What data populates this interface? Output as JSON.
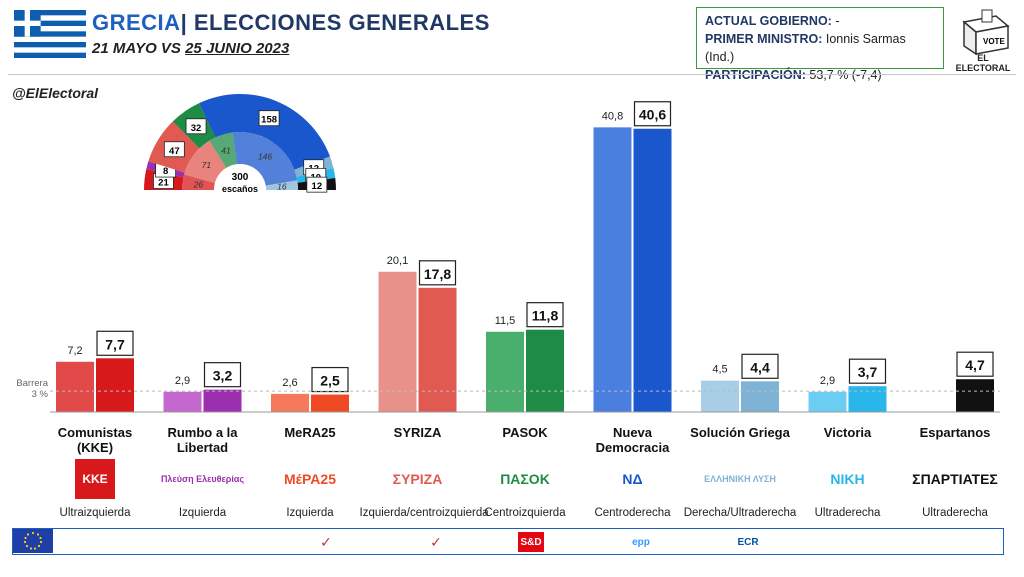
{
  "header": {
    "country": "GRECIA",
    "separator": "|",
    "election": "ELECCIONES GENERALES",
    "date_prefix": "21 MAYO VS",
    "date_main": "25 JUNIO 2023"
  },
  "infobox": {
    "gov_label": "ACTUAL GOBIERNO:",
    "gov_value": "-",
    "pm_label": "PRIMER MINISTRO:",
    "pm_value": "Ionnis Sarmas (Ind.)",
    "part_label": "PARTICIPACIÓN:",
    "part_value": "53,7 % (-7,4)"
  },
  "logo": {
    "vote": "VOTE",
    "brand": "EL ELECTORAL"
  },
  "handle": "@ElElectoral",
  "barrier": {
    "line1": "Barrera",
    "line2": "3 %"
  },
  "colors": {
    "brand_blue": "#1f5fbf",
    "kke": "#d7191c",
    "plefsi": "#9b2fae",
    "mera25": "#f04a24",
    "syriza": "#e05a52",
    "pasok": "#1e8c45",
    "nd": "#1a56cc",
    "elliniki": "#7fb3d5",
    "niki": "#29b6ea",
    "spartiates": "#111111"
  },
  "hemicycle": {
    "total_label": "300",
    "total_sub": "escaños",
    "seats_june": [
      {
        "party": "KKE",
        "seats": "21"
      },
      {
        "party": "Plefsi",
        "seats": "8"
      },
      {
        "party": "SYRIZA",
        "seats": "47"
      },
      {
        "party": "PASOK",
        "seats": "32"
      },
      {
        "party": "ND",
        "seats": "158"
      },
      {
        "party": "Elliniki",
        "seats": "12"
      },
      {
        "party": "Niki",
        "seats": "10"
      },
      {
        "party": "Spartiates",
        "seats": "12"
      }
    ],
    "seats_may": [
      {
        "party": "KKE",
        "seats": "26"
      },
      {
        "party": "SYRIZA",
        "seats": "71"
      },
      {
        "party": "PASOK",
        "seats": "41"
      },
      {
        "party": "ND",
        "seats": "146"
      },
      {
        "party": "Elliniki",
        "seats": "16"
      }
    ]
  },
  "chart_data": {
    "type": "bar",
    "categories": [
      "Comunistas (KKE)",
      "Rumbo a la Libertad",
      "MeRA25",
      "SYRIZA",
      "PASOK",
      "Nueva Democracia",
      "Solución Griega",
      "Victoria",
      "Espartanos"
    ],
    "series": [
      {
        "name": "21 MAYO",
        "values": [
          7.2,
          2.9,
          2.6,
          20.1,
          11.5,
          40.8,
          4.5,
          2.9,
          null
        ]
      },
      {
        "name": "25 JUNIO 2023",
        "values": [
          7.7,
          3.2,
          2.5,
          17.8,
          11.8,
          40.6,
          4.4,
          3.7,
          4.7
        ]
      }
    ],
    "labels_may": [
      "7,2",
      "2,9",
      "2,6",
      "20,1",
      "11,5",
      "40,8",
      "4,5",
      "2,9",
      ""
    ],
    "labels_june": [
      "7,7",
      "3,2",
      "2,5",
      "17,8",
      "11,8",
      "40,6",
      "4,4",
      "3,7",
      "4,7"
    ],
    "ylim": [
      0,
      43
    ],
    "threshold": 3,
    "grid": false
  },
  "parties": [
    {
      "name": "Comunistas (KKE)",
      "logo": "KKE",
      "ideology": "Ultraizquierda"
    },
    {
      "name": "Rumbo a la Libertad",
      "logo": "Πλεύση Ελευθερίας",
      "ideology": "Izquierda"
    },
    {
      "name": "MeRA25",
      "logo": "ΜέΡΑ25",
      "ideology": "Izquierda"
    },
    {
      "name": "SYRIZA",
      "logo": "ΣΥΡΙΖΑ",
      "ideology": "Izquierda/centroizquierda"
    },
    {
      "name": "PASOK",
      "logo": "ΠΑΣΟΚ",
      "ideology": "Centroizquierda"
    },
    {
      "name": "Nueva Democracia",
      "logo": "ΝΔ",
      "ideology": "Centroderecha"
    },
    {
      "name": "Solución Griega",
      "logo": "ΕΛΛΗΝΙΚΗ ΛΥΣΗ",
      "ideology": "Derecha/Ultraderecha"
    },
    {
      "name": "Victoria",
      "logo": "ΝΙΚΗ",
      "ideology": "Ultraderecha"
    },
    {
      "name": "Espartanos",
      "logo": "ΣΠΑΡΤΙΑΤΕΣ",
      "ideology": "Ultraderecha"
    }
  ],
  "footer": {
    "groups": [
      "",
      "",
      "S&D",
      "epp",
      "ECR"
    ]
  }
}
